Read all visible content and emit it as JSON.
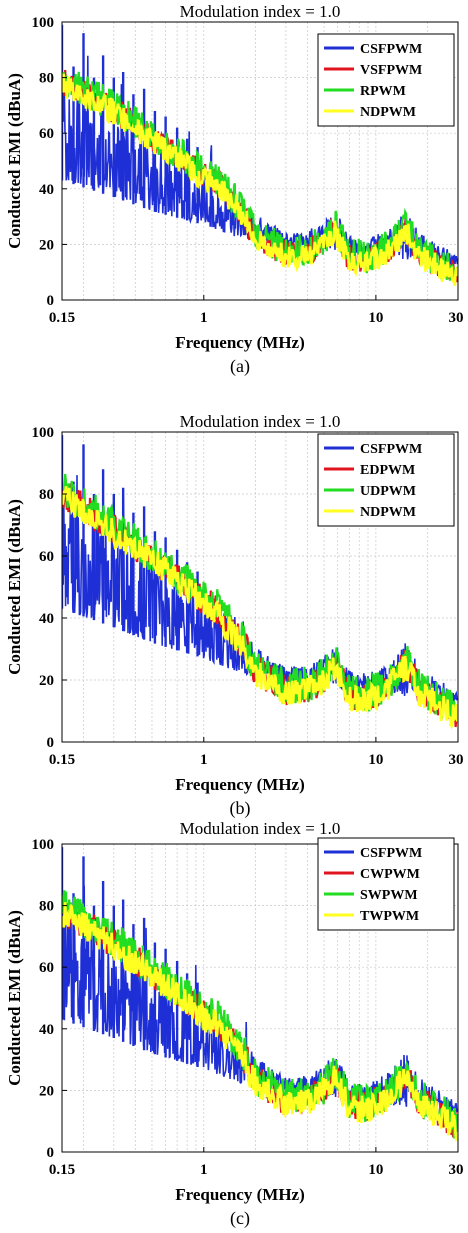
{
  "chart_data": [
    {
      "type": "line",
      "title": "Modulation index = 1.0",
      "xlabel": "Frequency (MHz)",
      "ylabel": "Conducted EMI (dBuA)",
      "caption": "(a)",
      "xscale": "log",
      "xlim": [
        0.15,
        30
      ],
      "ylim": [
        0,
        100
      ],
      "xticks": [
        {
          "value": 0.15,
          "label": "0.15"
        },
        {
          "value": 1,
          "label": "1"
        },
        {
          "value": 10,
          "label": "10"
        },
        {
          "value": 30,
          "label": "30"
        }
      ],
      "yticks": [
        0,
        20,
        40,
        60,
        80,
        100
      ],
      "grid": true,
      "legend": "top-right",
      "series": [
        {
          "name": "CSFPWM",
          "color": "#1f2fd6"
        },
        {
          "name": "VSFPWM",
          "color": "#e0141e"
        },
        {
          "name": "RPWM",
          "color": "#22dd22"
        },
        {
          "name": "NDPWM",
          "color": "#ffff22"
        }
      ],
      "envelope_points": {
        "x": [
          0.15,
          0.2,
          0.3,
          0.5,
          0.8,
          1.0,
          1.2,
          1.5,
          2.0,
          3.0,
          4.0,
          5.0,
          5.8,
          7.0,
          9.0,
          12.0,
          15.0,
          18.0,
          22.0,
          30.0
        ],
        "y": [
          81,
          77,
          71,
          61,
          52,
          47,
          45,
          38,
          28,
          21,
          22,
          25,
          30,
          20,
          19,
          23,
          30,
          21,
          18,
          13
        ]
      },
      "csfpwm_floor": {
        "x": [
          0.15,
          0.3,
          0.5,
          1.0,
          1.5,
          2.0,
          3.0,
          5.0,
          10.0,
          30.0
        ],
        "y": [
          43,
          37,
          32,
          27,
          23,
          21,
          19,
          18,
          16,
          12
        ]
      }
    },
    {
      "type": "line",
      "title": "Modulation index = 1.0",
      "xlabel": "Frequency (MHz)",
      "ylabel": "Conducted EMI (dBuA)",
      "caption": "(b)",
      "xscale": "log",
      "xlim": [
        0.15,
        30
      ],
      "ylim": [
        0,
        100
      ],
      "xticks": [
        {
          "value": 0.15,
          "label": "0.15"
        },
        {
          "value": 1,
          "label": "1"
        },
        {
          "value": 10,
          "label": "10"
        },
        {
          "value": 30,
          "label": "30"
        }
      ],
      "yticks": [
        0,
        20,
        40,
        60,
        80,
        100
      ],
      "grid": true,
      "legend": "top-right",
      "series": [
        {
          "name": "CSFPWM",
          "color": "#1f2fd6"
        },
        {
          "name": "EDPWM",
          "color": "#e0141e"
        },
        {
          "name": "UDPWM",
          "color": "#22dd22"
        },
        {
          "name": "NDPWM",
          "color": "#ffff22"
        }
      ],
      "envelope_points": {
        "x": [
          0.15,
          0.2,
          0.3,
          0.5,
          0.8,
          1.0,
          1.2,
          1.5,
          2.0,
          3.0,
          4.0,
          5.0,
          5.8,
          7.0,
          9.0,
          12.0,
          15.0,
          18.0,
          22.0,
          30.0
        ],
        "y": [
          83,
          78,
          71,
          62,
          53,
          48,
          45,
          38,
          28,
          21,
          22,
          25,
          30,
          20,
          19,
          23,
          30,
          21,
          18,
          13
        ]
      },
      "csfpwm_floor": {
        "x": [
          0.15,
          0.3,
          0.5,
          1.0,
          1.5,
          2.0,
          3.0,
          5.0,
          10.0,
          30.0
        ],
        "y": [
          43,
          37,
          32,
          27,
          23,
          21,
          19,
          18,
          16,
          12
        ]
      }
    },
    {
      "type": "line",
      "title": "Modulation index = 1.0",
      "xlabel": "Frequency (MHz)",
      "ylabel": "Conducted EMI (dBuA)",
      "caption": "(c)",
      "xscale": "log",
      "xlim": [
        0.15,
        30
      ],
      "ylim": [
        0,
        100
      ],
      "xticks": [
        {
          "value": 0.15,
          "label": "0.15"
        },
        {
          "value": 1,
          "label": "1"
        },
        {
          "value": 10,
          "label": "10"
        },
        {
          "value": 30,
          "label": "30"
        }
      ],
      "yticks": [
        0,
        20,
        40,
        60,
        80,
        100
      ],
      "grid": true,
      "legend": "top-right",
      "series": [
        {
          "name": "CSFPWM",
          "color": "#1f2fd6"
        },
        {
          "name": "CWPWM",
          "color": "#e0141e"
        },
        {
          "name": "SWPWM",
          "color": "#22dd22"
        },
        {
          "name": "TWPWM",
          "color": "#ffff22"
        }
      ],
      "envelope_points": {
        "x": [
          0.15,
          0.2,
          0.3,
          0.5,
          0.8,
          1.0,
          1.2,
          1.5,
          2.0,
          3.0,
          4.0,
          5.0,
          5.8,
          7.0,
          9.0,
          12.0,
          15.0,
          18.0,
          22.0,
          30.0
        ],
        "y": [
          81,
          77,
          70,
          61,
          52,
          47,
          45,
          38,
          28,
          21,
          22,
          25,
          30,
          20,
          19,
          23,
          30,
          21,
          18,
          13
        ]
      },
      "csfpwm_floor": {
        "x": [
          0.15,
          0.3,
          0.5,
          1.0,
          1.5,
          2.0,
          3.0,
          5.0,
          10.0,
          30.0
        ],
        "y": [
          43,
          37,
          32,
          27,
          23,
          21,
          19,
          18,
          16,
          12
        ]
      }
    }
  ]
}
